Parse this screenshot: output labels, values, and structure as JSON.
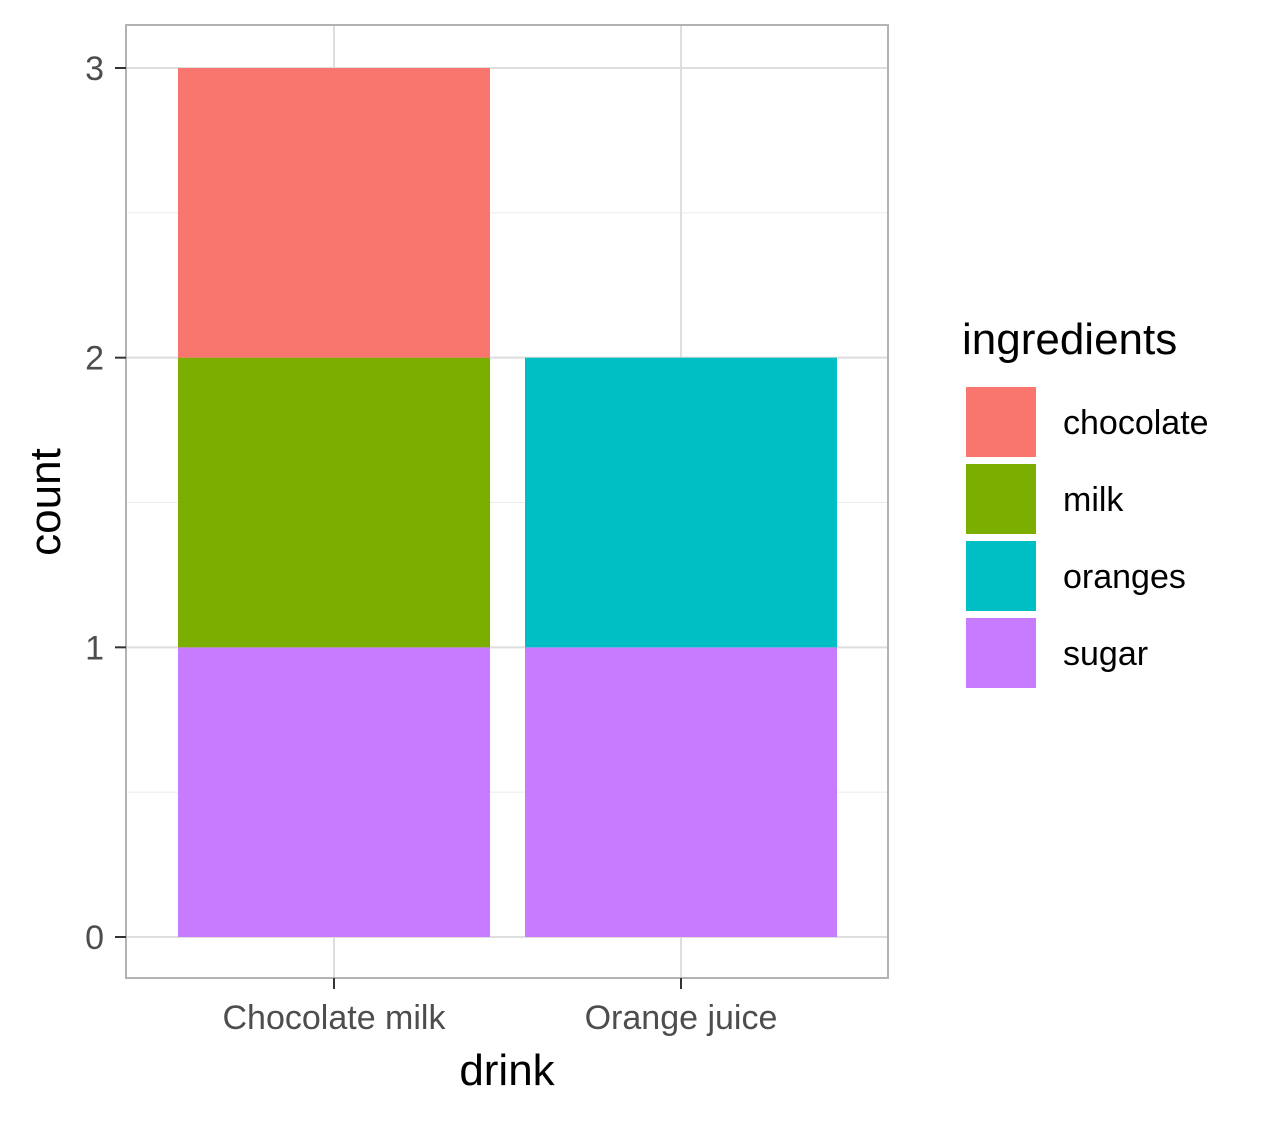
{
  "chart_data": {
    "type": "bar",
    "stacked": true,
    "xlabel": "drink",
    "ylabel": "count",
    "categories": [
      "Chocolate milk",
      "Orange juice"
    ],
    "y_ticks": [
      "0",
      "1",
      "2",
      "3"
    ],
    "ylim": [
      0,
      3
    ],
    "grid": true,
    "legend": {
      "title": "ingredients",
      "position": "right",
      "entries": [
        "chocolate",
        "milk",
        "oranges",
        "sugar"
      ]
    },
    "series": [
      {
        "name": "chocolate",
        "color": "#F8766D",
        "values": [
          1,
          0
        ]
      },
      {
        "name": "milk",
        "color": "#7CAE00",
        "values": [
          1,
          0
        ]
      },
      {
        "name": "oranges",
        "color": "#00BFC4",
        "values": [
          0,
          1
        ]
      },
      {
        "name": "sugar",
        "color": "#C77CFF",
        "values": [
          1,
          1
        ]
      }
    ]
  }
}
